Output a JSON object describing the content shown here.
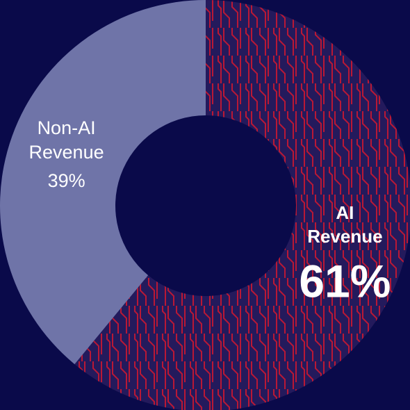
{
  "chart_data": {
    "type": "pie",
    "categories": [
      "AI Revenue",
      "Non-AI Revenue"
    ],
    "values": [
      61,
      39
    ],
    "value_labels": [
      "61%",
      "39%"
    ],
    "colors": [
      "#241a5c",
      "#6f74a8"
    ]
  }
}
